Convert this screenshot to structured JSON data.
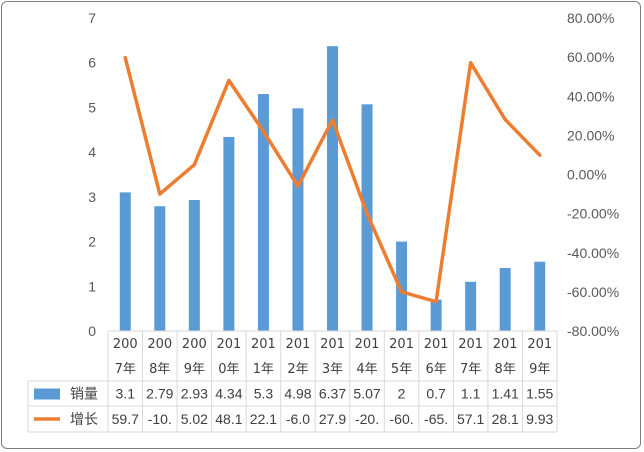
{
  "chart_data": {
    "type": "bar+line",
    "categories": [
      [
        "200",
        "7年"
      ],
      [
        "200",
        "8年"
      ],
      [
        "200",
        "9年"
      ],
      [
        "201",
        "0年"
      ],
      [
        "201",
        "1年"
      ],
      [
        "201",
        "2年"
      ],
      [
        "201",
        "3年"
      ],
      [
        "201",
        "4年"
      ],
      [
        "201",
        "5年"
      ],
      [
        "201",
        "6年"
      ],
      [
        "201",
        "7年"
      ],
      [
        "201",
        "8年"
      ],
      [
        "201",
        "9年"
      ]
    ],
    "series": [
      {
        "name": "销量",
        "type": "bar",
        "axis": "left",
        "color": "#5b9bd5",
        "values": [
          3.1,
          2.79,
          2.93,
          4.34,
          5.3,
          4.98,
          6.37,
          5.07,
          2,
          0.7,
          1.1,
          1.41,
          1.55
        ],
        "table_labels": [
          "3.1",
          "2.79",
          "2.93",
          "4.34",
          "5.3",
          "4.98",
          "6.37",
          "5.07",
          "2",
          "0.7",
          "1.1",
          "1.41",
          "1.55"
        ]
      },
      {
        "name": "增长",
        "type": "line",
        "axis": "right",
        "color": "#ed7d31",
        "values": [
          59.7,
          -10.0,
          5.02,
          48.1,
          22.1,
          -6.0,
          27.9,
          -20.0,
          -60.0,
          -65.0,
          57.1,
          28.1,
          9.93
        ],
        "table_labels": [
          "59.7",
          "-10.",
          "5.02",
          "48.1",
          "22.1",
          "-6.0",
          "27.9",
          "-20.",
          "-60.",
          "-65.",
          "57.1",
          "28.1",
          "9.93"
        ]
      }
    ],
    "y_left": {
      "range": [
        0,
        7
      ],
      "ticks": [
        "0",
        "1",
        "2",
        "3",
        "4",
        "5",
        "6",
        "7"
      ]
    },
    "y_right": {
      "range": [
        -80,
        80
      ],
      "ticks": [
        "-80.00%",
        "-60.00%",
        "-40.00%",
        "-20.00%",
        "0.00%",
        "20.00%",
        "40.00%",
        "60.00%",
        "80.00%"
      ]
    },
    "grid": false,
    "legend": "data-table",
    "axis_color": "#d9d9d9",
    "text_color": "#595959"
  }
}
